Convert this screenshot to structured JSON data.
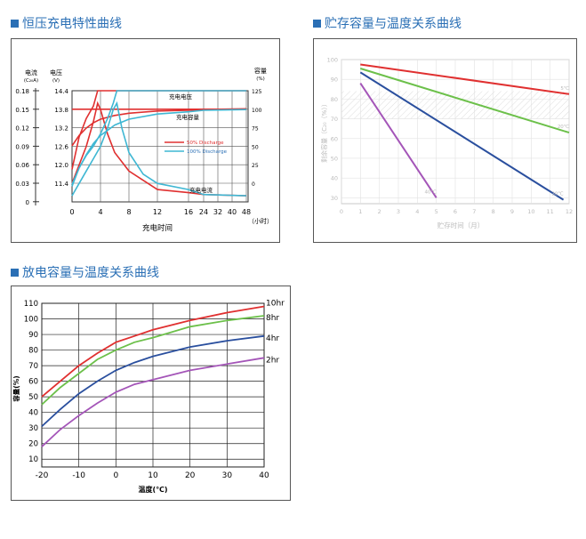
{
  "sections": {
    "charge_title": "恒压充电特性曲线",
    "storage_title": "贮存容量与温度关系曲线",
    "discharge_title": "放电容量与温度关系曲线"
  },
  "colors": {
    "accent": "#2a6fb5",
    "red": "#e03030",
    "cyan": "#3fb7d3",
    "green": "#6cc04a",
    "blue": "#2a4f9e",
    "purple": "#a455b8"
  },
  "chart_data": [
    {
      "id": "charge",
      "type": "line",
      "title": "恒压充电特性曲线",
      "xlabel": "充电时间",
      "x_unit": "（小时）",
      "x_ticks": [
        "0",
        "4",
        "8",
        "12",
        "16",
        "24",
        "32",
        "40",
        "48"
      ],
      "left_axis_current": {
        "label": "电流",
        "unit": "(C₂₀A)",
        "ticks": [
          "0.18",
          "0.15",
          "0.12",
          "0.09",
          "0.06",
          "0.03",
          "0"
        ]
      },
      "left_axis_voltage": {
        "label": "电压",
        "unit": "(V)",
        "ticks": [
          "14.4",
          "13.8",
          "13.2",
          "12.6",
          "12.0",
          "11.4"
        ]
      },
      "right_axis_capacity": {
        "label": "容量",
        "unit": "(%)",
        "ticks": [
          "125",
          "100",
          "75",
          "50",
          "25",
          "0"
        ]
      },
      "curve_labels": {
        "voltage": "充电电压",
        "capacity": "充电容量",
        "current": "充电电流"
      },
      "legend": [
        "50% Discharge",
        "100% Discharge"
      ],
      "series": [
        {
          "name": "50% Discharge",
          "quantity": "voltage",
          "x": [
            0,
            1,
            2,
            3,
            3.6,
            4,
            8,
            12,
            48
          ],
          "y": [
            11.85,
            12.9,
            13.5,
            13.9,
            14.4,
            14.4,
            14.4,
            14.4,
            14.4
          ]
        },
        {
          "name": "50% Discharge",
          "quantity": "voltage_float",
          "x": [
            0,
            48
          ],
          "y": [
            13.8,
            13.8
          ]
        },
        {
          "name": "50% Discharge",
          "quantity": "current",
          "x": [
            0,
            1,
            2,
            3,
            3.6,
            4,
            5,
            6,
            8,
            10,
            12,
            16,
            24,
            48
          ],
          "y": [
            0.03,
            0.06,
            0.09,
            0.13,
            0.16,
            0.15,
            0.11,
            0.08,
            0.05,
            0.035,
            0.02,
            0.015,
            0.012,
            0.01
          ]
        },
        {
          "name": "50% Discharge",
          "quantity": "capacity",
          "x": [
            0,
            1,
            2,
            3,
            4,
            6,
            8,
            12,
            16,
            24,
            48
          ],
          "y": [
            52,
            66,
            76,
            83,
            88,
            93,
            96,
            99,
            100,
            101,
            102
          ]
        },
        {
          "name": "100% Discharge",
          "quantity": "voltage",
          "x": [
            0,
            1,
            2,
            3,
            4,
            5,
            5.8,
            6.3,
            8,
            12,
            48
          ],
          "y": [
            11.3,
            11.9,
            12.3,
            12.6,
            13.0,
            13.5,
            14.0,
            14.4,
            14.4,
            14.4,
            14.4
          ]
        },
        {
          "name": "100% Discharge",
          "quantity": "current",
          "x": [
            0,
            1,
            2,
            3,
            4,
            5,
            5.8,
            6.3,
            7,
            8,
            10,
            12,
            16,
            24,
            48
          ],
          "y": [
            0.01,
            0.03,
            0.05,
            0.07,
            0.09,
            0.12,
            0.15,
            0.16,
            0.12,
            0.08,
            0.045,
            0.03,
            0.02,
            0.012,
            0.01
          ]
        },
        {
          "name": "100% Discharge",
          "quantity": "capacity",
          "x": [
            0,
            1,
            2,
            3,
            4,
            6,
            8,
            12,
            16,
            24,
            48
          ],
          "y": [
            0,
            22,
            40,
            55,
            66,
            80,
            88,
            95,
            98,
            100,
            101
          ]
        }
      ]
    },
    {
      "id": "storage",
      "type": "line",
      "title": "贮存容量与温度关系曲线",
      "xlabel": "贮存时间（月）",
      "ylabel": "剩余容量（C₂₀（%））",
      "x_ticks": [
        "0",
        "1",
        "2",
        "3",
        "4",
        "5",
        "6",
        "7",
        "8",
        "9",
        "10",
        "11",
        "12"
      ],
      "y_ticks": [
        "100",
        "90",
        "80",
        "70",
        "60",
        "50",
        "40",
        "30"
      ],
      "xlim": [
        0,
        12
      ],
      "ylim": [
        27,
        100
      ],
      "series": [
        {
          "name": "5℃",
          "color": "red",
          "x": [
            1,
            12
          ],
          "y": [
            97.5,
            82.5
          ]
        },
        {
          "name": "20℃",
          "color": "green",
          "x": [
            1,
            12
          ],
          "y": [
            95.5,
            63
          ]
        },
        {
          "name": "30℃",
          "color": "blue",
          "x": [
            1,
            11.7
          ],
          "y": [
            93.5,
            29
          ]
        },
        {
          "name": "40℃",
          "color": "purple",
          "x": [
            1,
            5
          ],
          "y": [
            88,
            30
          ]
        }
      ]
    },
    {
      "id": "discharge",
      "type": "line",
      "title": "放电容量与温度关系曲线",
      "xlabel": "温度(℃)",
      "ylabel": "容量(%)",
      "x_ticks": [
        "-20",
        "-10",
        "0",
        "10",
        "20",
        "30",
        "40"
      ],
      "y_ticks": [
        "110",
        "100",
        "90",
        "80",
        "70",
        "60",
        "50",
        "40",
        "30",
        "20",
        "10"
      ],
      "xlim": [
        -20,
        40
      ],
      "ylim": [
        5,
        110
      ],
      "series": [
        {
          "name": "10hr",
          "color": "red",
          "x": [
            -20,
            -15,
            -10,
            -5,
            0,
            5,
            10,
            20,
            30,
            40
          ],
          "y": [
            50,
            60,
            70,
            78,
            85,
            89,
            93,
            99,
            104,
            108
          ]
        },
        {
          "name": "8hr",
          "color": "green",
          "x": [
            -20,
            -15,
            -10,
            -5,
            0,
            5,
            10,
            20,
            30,
            40
          ],
          "y": [
            45,
            56,
            65,
            74,
            80,
            85,
            88,
            95,
            99,
            102
          ]
        },
        {
          "name": "4hr",
          "color": "blue",
          "x": [
            -20,
            -15,
            -10,
            -5,
            0,
            5,
            10,
            20,
            30,
            40
          ],
          "y": [
            31,
            42,
            52,
            60,
            67,
            72,
            76,
            82,
            86,
            89
          ]
        },
        {
          "name": "2hr",
          "color": "purple",
          "x": [
            -20,
            -15,
            -10,
            -5,
            0,
            5,
            10,
            20,
            30,
            40
          ],
          "y": [
            18,
            29,
            38,
            46,
            53,
            58,
            61,
            67,
            71,
            75
          ]
        }
      ]
    }
  ]
}
